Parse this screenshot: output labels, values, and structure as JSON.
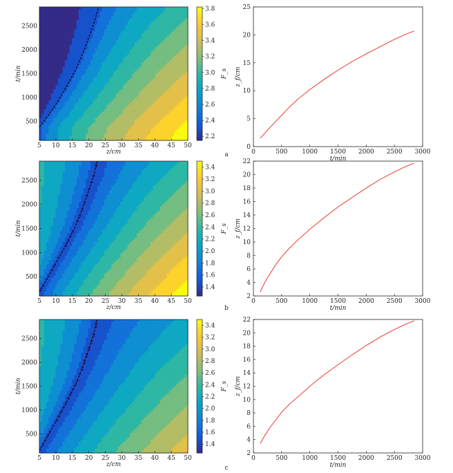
{
  "chart_data": [
    {
      "panel": "a",
      "type": "heatmap",
      "xlabel": "z/cm",
      "ylabel": "t/min",
      "colorbar_label": "F_s",
      "xlim": [
        5,
        50
      ],
      "ylim": [
        100,
        2900
      ],
      "x_ticks": [
        "5",
        "10",
        "15",
        "20",
        "25",
        "30",
        "35",
        "40",
        "45",
        "50"
      ],
      "y_ticks": [
        "500",
        "1000",
        "1500",
        "2000",
        "2500"
      ],
      "colorbar_ticks": [
        "2.2",
        "2.4",
        "2.6",
        "2.8",
        "3.0",
        "3.2",
        "3.4",
        "3.6",
        "3.8"
      ],
      "levels": [
        2.15,
        3.82
      ],
      "front": [
        [
          5,
          380
        ],
        [
          7,
          560
        ],
        [
          10,
          850
        ],
        [
          13,
          1200
        ],
        [
          16,
          1580
        ],
        [
          18,
          1900
        ],
        [
          20,
          2260
        ],
        [
          21.5,
          2550
        ],
        [
          23,
          2900
        ]
      ],
      "low_value": 2.15,
      "near_front_value": 2.3,
      "far_value": 3.8
    },
    {
      "panel": "a",
      "type": "line",
      "xlabel": "t/min",
      "ylabel": "z_f/cm",
      "xlim": [
        0,
        3000
      ],
      "ylim": [
        0,
        25
      ],
      "x_ticks": [
        "0",
        "500",
        "1000",
        "1500",
        "2000",
        "2500",
        "3000"
      ],
      "y_ticks": [
        "0",
        "5",
        "10",
        "15",
        "20",
        "25"
      ],
      "color": "#e74c3c",
      "x": [
        120,
        300,
        500,
        650,
        800,
        1000,
        1250,
        1500,
        1750,
        2000,
        2250,
        2500,
        2700,
        2850
      ],
      "y": [
        1.5,
        3.5,
        5.6,
        7.2,
        8.6,
        10.2,
        12.0,
        13.7,
        15.2,
        16.6,
        17.9,
        19.2,
        20.1,
        20.7
      ]
    },
    {
      "panel": "b",
      "type": "heatmap",
      "xlabel": "z/cm",
      "ylabel": "t/min",
      "colorbar_label": "F_s",
      "xlim": [
        5,
        50
      ],
      "ylim": [
        100,
        2900
      ],
      "x_ticks": [
        "5",
        "10",
        "15",
        "20",
        "25",
        "30",
        "35",
        "40",
        "45",
        "50"
      ],
      "y_ticks": [
        "500",
        "1000",
        "1500",
        "2000",
        "2500"
      ],
      "colorbar_ticks": [
        "1.4",
        "1.6",
        "1.8",
        "2.0",
        "2.2",
        "2.4",
        "2.6",
        "2.8",
        "3.0",
        "3.2",
        "3.4"
      ],
      "levels": [
        1.25,
        3.5
      ],
      "front": [
        [
          5,
          180
        ],
        [
          7,
          420
        ],
        [
          10,
          780
        ],
        [
          13,
          1150
        ],
        [
          16,
          1560
        ],
        [
          18,
          1900
        ],
        [
          20,
          2300
        ],
        [
          21.5,
          2600
        ],
        [
          22.5,
          2900
        ]
      ],
      "low_value": 2.5,
      "near_front_value": 1.3,
      "far_value": 3.45
    },
    {
      "panel": "b",
      "type": "line",
      "xlabel": "t/min",
      "ylabel": "z_f/cm",
      "xlim": [
        0,
        3000
      ],
      "ylim": [
        2,
        22
      ],
      "x_ticks": [
        "0",
        "500",
        "1000",
        "1500",
        "2000",
        "2500",
        "3000"
      ],
      "y_ticks": [
        "2",
        "4",
        "6",
        "8",
        "10",
        "12",
        "14",
        "16",
        "18",
        "20",
        "22"
      ],
      "color": "#e74c3c",
      "x": [
        120,
        200,
        300,
        400,
        500,
        650,
        800,
        1000,
        1250,
        1500,
        1750,
        2000,
        2250,
        2500,
        2700,
        2850
      ],
      "y": [
        2.6,
        4.0,
        5.4,
        6.7,
        7.8,
        9.2,
        10.4,
        11.9,
        13.6,
        15.2,
        16.6,
        18.0,
        19.3,
        20.4,
        21.2,
        21.7
      ]
    },
    {
      "panel": "c",
      "type": "heatmap",
      "xlabel": "z/cm",
      "ylabel": "t/min",
      "colorbar_label": "F_s",
      "xlim": [
        5,
        50
      ],
      "ylim": [
        100,
        2900
      ],
      "x_ticks": [
        "5",
        "10",
        "15",
        "20",
        "25",
        "30",
        "35",
        "40",
        "45",
        "50"
      ],
      "y_ticks": [
        "500",
        "1000",
        "1500",
        "2000",
        "2500"
      ],
      "colorbar_ticks": [
        "1.4",
        "1.6",
        "1.8",
        "2.0",
        "2.2",
        "2.4",
        "2.6",
        "2.8",
        "3.0",
        "3.2",
        "3.4"
      ],
      "levels": [
        1.25,
        3.5
      ],
      "front": [
        [
          5,
          150
        ],
        [
          7,
          400
        ],
        [
          10,
          760
        ],
        [
          13,
          1130
        ],
        [
          16,
          1540
        ],
        [
          18,
          1880
        ],
        [
          20,
          2280
        ],
        [
          21.5,
          2600
        ],
        [
          22.5,
          2900
        ]
      ],
      "low_value": 2.5,
      "near_front_value": 1.3,
      "far_value": 3.0
    },
    {
      "panel": "c",
      "type": "line",
      "xlabel": "t/min",
      "ylabel": "z_f/cm",
      "xlim": [
        0,
        3000
      ],
      "ylim": [
        2,
        22
      ],
      "x_ticks": [
        "0",
        "500",
        "1000",
        "1500",
        "2000",
        "2500",
        "3000"
      ],
      "y_ticks": [
        "2",
        "4",
        "6",
        "8",
        "10",
        "12",
        "14",
        "16",
        "18",
        "20",
        "22"
      ],
      "color": "#e74c3c",
      "x": [
        120,
        200,
        300,
        400,
        500,
        650,
        800,
        1000,
        1250,
        1500,
        1750,
        2000,
        2250,
        2500,
        2700,
        2850
      ],
      "y": [
        3.4,
        4.6,
        5.9,
        7.0,
        8.1,
        9.4,
        10.5,
        12.0,
        13.7,
        15.2,
        16.7,
        18.1,
        19.4,
        20.5,
        21.3,
        21.8
      ]
    }
  ],
  "colormap": [
    "#352a87",
    "#0f5cdd",
    "#1481d6",
    "#06a4ca",
    "#2eb7a4",
    "#87bf77",
    "#d1bb59",
    "#fec832",
    "#f9fb0e"
  ]
}
